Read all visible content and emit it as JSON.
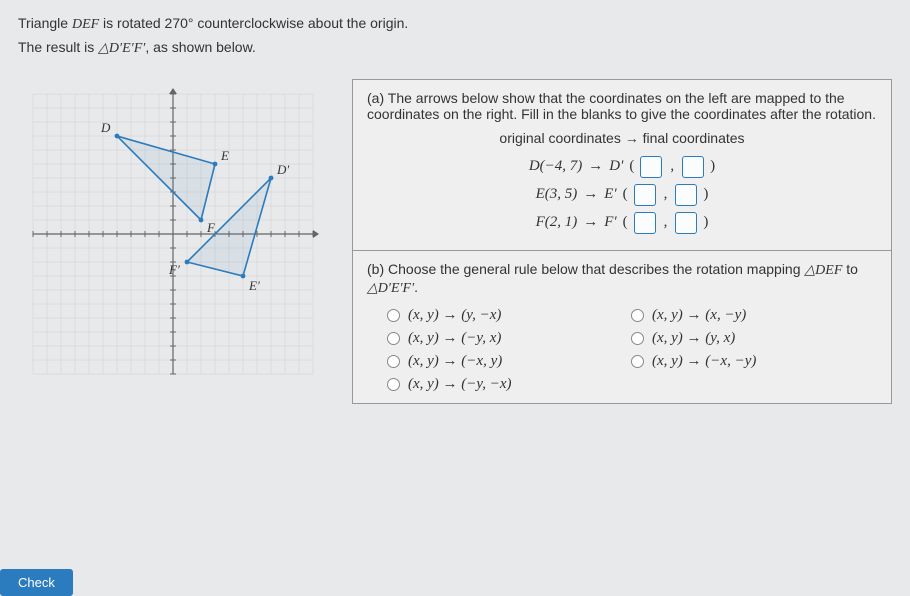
{
  "intro": {
    "line1_pre": "Triangle ",
    "line1_tri": "DEF",
    "line1_post": " is rotated 270° counterclockwise about the origin.",
    "line2_pre": "The result is ",
    "line2_tri": "△D′E′F′",
    "line2_post": ", as shown below."
  },
  "partA": {
    "label": "(a)",
    "text": "The arrows below show that the coordinates on the left are mapped to the coordinates on the right. Fill in the blanks to give the coordinates after the rotation.",
    "header": "original coordinates → final coordinates",
    "rows": [
      {
        "left": "D(−4, 7)",
        "arrow": "→",
        "right": "D′"
      },
      {
        "left": "E(3, 5)",
        "arrow": "→",
        "right": "E′"
      },
      {
        "left": "F(2, 1)",
        "arrow": "→",
        "right": "F′"
      }
    ]
  },
  "partB": {
    "label": "(b)",
    "text_pre": "Choose the general rule below that describes the rotation mapping ",
    "text_tri1": "△DEF",
    "text_mid": " to ",
    "text_tri2": "△D′E′F′",
    "text_post": ".",
    "choices": [
      "(x, y) → (y, −x)",
      "(x, y) → (x, −y)",
      "(x, y) → (−y, x)",
      "(x, y) → (y, x)",
      "(x, y) → (−x, y)",
      "(x, y) → (−x, −y)",
      "(x, y) → (−y, −x)"
    ]
  },
  "graph": {
    "points": {
      "D": {
        "x": -4,
        "y": 7,
        "label": "D"
      },
      "E": {
        "x": 3,
        "y": 5,
        "label": "E"
      },
      "F": {
        "x": 2,
        "y": 1,
        "label": "F"
      },
      "Dp": {
        "x": 7,
        "y": 4,
        "label": "D′"
      },
      "Ep": {
        "x": 5,
        "y": -3,
        "label": "E′"
      },
      "Fp": {
        "x": 1,
        "y": -2,
        "label": "F′"
      }
    },
    "axis_range": 10,
    "colors": {
      "grid": "#d0d0d0",
      "axis": "#666",
      "tri": "#2b7bbf",
      "fill": "rgba(43,123,191,0.08)",
      "label": "#333"
    }
  },
  "buttons": {
    "check": "Check"
  }
}
